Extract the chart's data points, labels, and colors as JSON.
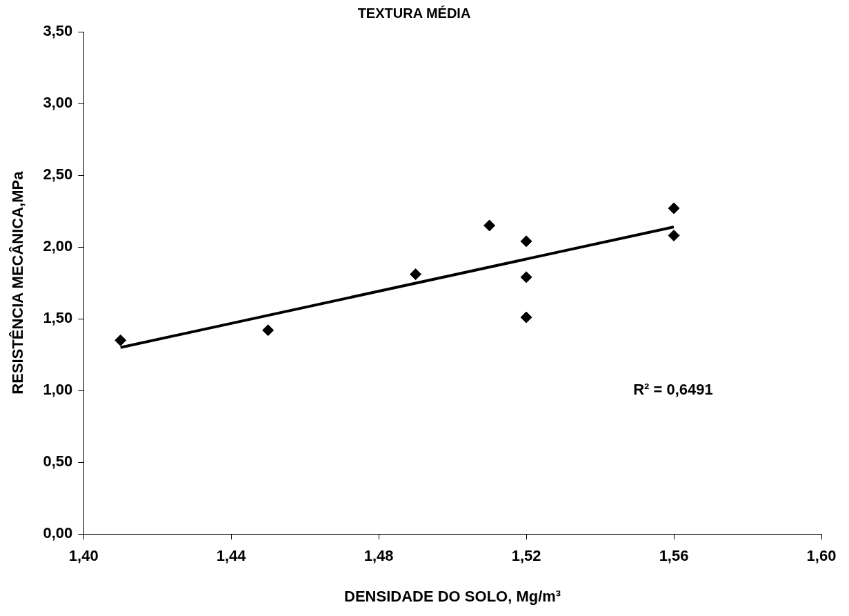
{
  "chart_data": {
    "type": "scatter",
    "title": "TEXTURA MÉDIA",
    "xlabel": "DENSIDADE DO SOLO, Mg/m³",
    "ylabel": "RESISTÊNCIA MECÂNICA,MPa",
    "annotations": [
      "R² = 0,6491"
    ],
    "series": [
      {
        "color": "#000000",
        "marker": "diamond",
        "x": [
          1.41,
          1.45,
          1.49,
          1.51,
          1.52,
          1.52,
          1.52,
          1.56,
          1.56
        ],
        "values": [
          1.35,
          1.42,
          1.81,
          2.15,
          2.04,
          1.79,
          1.51,
          2.27,
          2.08
        ]
      },
      {
        "type": "line",
        "color": "#000000",
        "marker": "none",
        "x": [
          1.41,
          1.56
        ],
        "values": [
          1.3,
          2.14
        ]
      }
    ],
    "xlim": [
      1.4,
      1.6
    ],
    "xticks": [
      {
        "value": 1.4,
        "label": "1,40"
      },
      {
        "value": 1.44,
        "label": "1,44"
      },
      {
        "value": 1.48,
        "label": "1,48"
      },
      {
        "value": 1.52,
        "label": "1,52"
      },
      {
        "value": 1.56,
        "label": "1,56"
      },
      {
        "value": 1.6,
        "label": "1,60"
      }
    ],
    "ylim": [
      0,
      3.5
    ],
    "yticks": [
      {
        "value": 0,
        "label": "0,00"
      },
      {
        "value": 0.5,
        "label": "0,50"
      },
      {
        "value": 1,
        "label": "1,00"
      },
      {
        "value": 1.5,
        "label": "1,50"
      },
      {
        "value": 2,
        "label": "2,00"
      },
      {
        "value": 2.5,
        "label": "2,50"
      },
      {
        "value": 3,
        "label": "3,00"
      },
      {
        "value": 3.5,
        "label": "3,50"
      }
    ]
  }
}
